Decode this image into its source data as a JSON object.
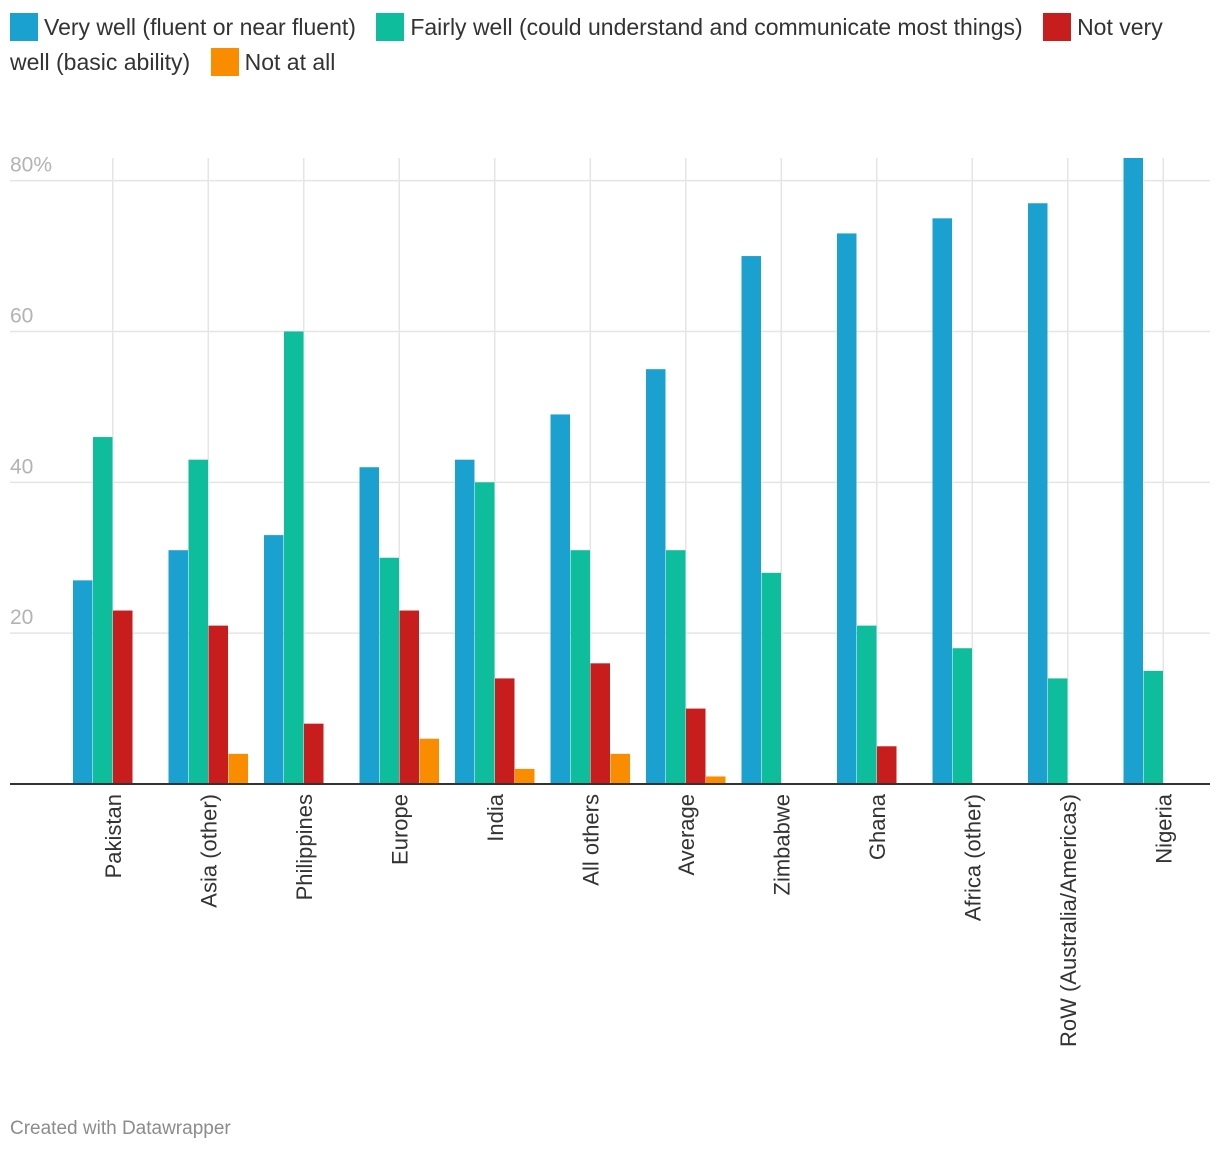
{
  "chart_data": {
    "type": "bar",
    "title": "",
    "xlabel": "",
    "ylabel": "",
    "ylim": [
      0,
      83
    ],
    "yticks": [
      {
        "value": 20,
        "label": "20"
      },
      {
        "value": 40,
        "label": "40"
      },
      {
        "value": 60,
        "label": "60"
      },
      {
        "value": 80,
        "label": "80%"
      }
    ],
    "categories": [
      "Pakistan",
      "Asia (other)",
      "Philippines",
      "Europe",
      "India",
      "All others",
      "Average",
      "Zimbabwe",
      "Ghana",
      "Africa (other)",
      "RoW (Australia/Americas)",
      "Nigeria"
    ],
    "series": [
      {
        "name": "Very well (fluent or near fluent)",
        "color": "#1ba1d0",
        "values": [
          27,
          31,
          33,
          42,
          43,
          49,
          55,
          70,
          73,
          75,
          77,
          83
        ]
      },
      {
        "name": "Fairly well (could understand and communicate most things)",
        "color": "#0dbd9c",
        "values": [
          46,
          43,
          60,
          30,
          40,
          31,
          31,
          28,
          21,
          18,
          14,
          15
        ]
      },
      {
        "name": "Not very well (basic ability)",
        "color": "#c71e1d",
        "values": [
          23,
          21,
          8,
          23,
          14,
          16,
          10,
          0,
          5,
          0,
          0,
          0
        ]
      },
      {
        "name": "Not at all",
        "color": "#fa8c00",
        "values": [
          0,
          4,
          0,
          6,
          2,
          4,
          1,
          0,
          0,
          0,
          0,
          0
        ]
      }
    ]
  },
  "footer": "Created with Datawrapper"
}
